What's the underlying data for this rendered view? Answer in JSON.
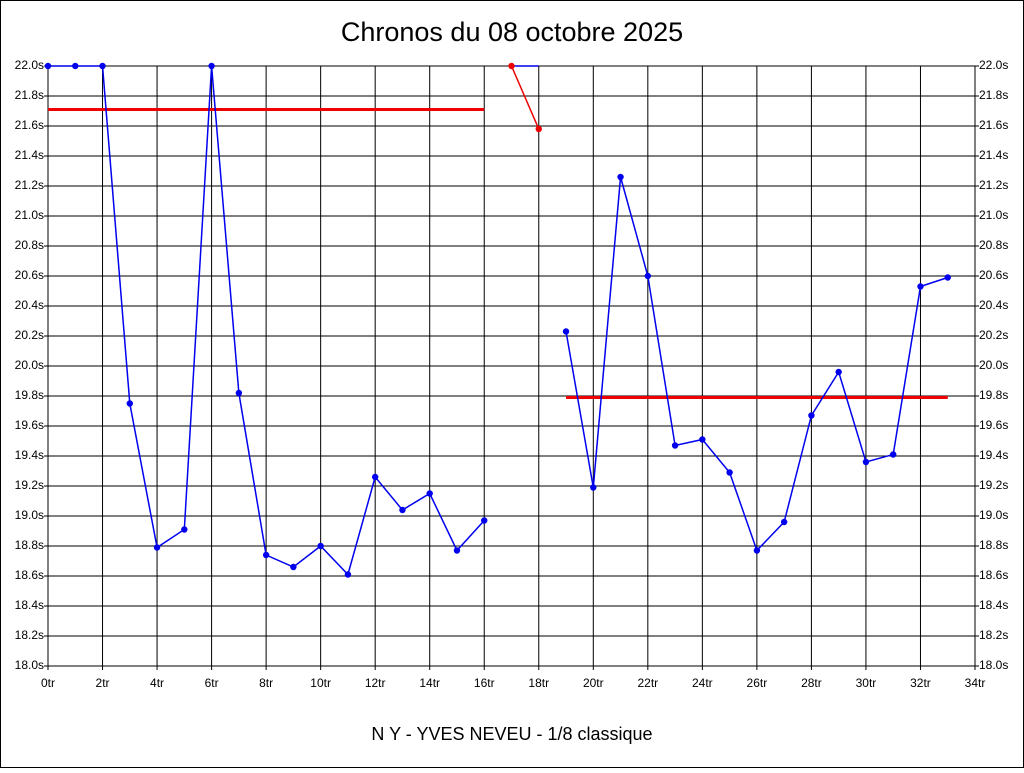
{
  "chart_data": {
    "type": "line",
    "title": "Chronos du 08 octobre 2025",
    "xlabel": "N Y - YVES NEVEU - 1/8 classique",
    "xlim": [
      0,
      34
    ],
    "ylim": [
      18.0,
      22.0
    ],
    "grid": true,
    "xticks": [
      {
        "value": 0,
        "label": "0tr"
      },
      {
        "value": 2,
        "label": "2tr"
      },
      {
        "value": 4,
        "label": "4tr"
      },
      {
        "value": 6,
        "label": "6tr"
      },
      {
        "value": 8,
        "label": "8tr"
      },
      {
        "value": 10,
        "label": "10tr"
      },
      {
        "value": 12,
        "label": "12tr"
      },
      {
        "value": 14,
        "label": "14tr"
      },
      {
        "value": 16,
        "label": "16tr"
      },
      {
        "value": 18,
        "label": "18tr"
      },
      {
        "value": 20,
        "label": "20tr"
      },
      {
        "value": 22,
        "label": "22tr"
      },
      {
        "value": 24,
        "label": "24tr"
      },
      {
        "value": 26,
        "label": "26tr"
      },
      {
        "value": 28,
        "label": "28tr"
      },
      {
        "value": 30,
        "label": "30tr"
      },
      {
        "value": 32,
        "label": "32tr"
      },
      {
        "value": 34,
        "label": "34tr"
      }
    ],
    "yticks": [
      {
        "value": 18.0,
        "label": "18.0s"
      },
      {
        "value": 18.2,
        "label": "18.2s"
      },
      {
        "value": 18.4,
        "label": "18.4s"
      },
      {
        "value": 18.6,
        "label": "18.6s"
      },
      {
        "value": 18.8,
        "label": "18.8s"
      },
      {
        "value": 19.0,
        "label": "19.0s"
      },
      {
        "value": 19.2,
        "label": "19.2s"
      },
      {
        "value": 19.4,
        "label": "19.4s"
      },
      {
        "value": 19.6,
        "label": "19.6s"
      },
      {
        "value": 19.8,
        "label": "19.8s"
      },
      {
        "value": 20.0,
        "label": "20.0s"
      },
      {
        "value": 20.2,
        "label": "20.2s"
      },
      {
        "value": 20.4,
        "label": "20.4s"
      },
      {
        "value": 20.6,
        "label": "20.6s"
      },
      {
        "value": 20.8,
        "label": "20.8s"
      },
      {
        "value": 21.0,
        "label": "21.0s"
      },
      {
        "value": 21.2,
        "label": "21.2s"
      },
      {
        "value": 21.4,
        "label": "21.4s"
      },
      {
        "value": 21.6,
        "label": "21.6s"
      },
      {
        "value": 21.8,
        "label": "21.8s"
      },
      {
        "value": 22.0,
        "label": "22.0s"
      }
    ],
    "series": [
      {
        "color": "#0000ee",
        "markers": true,
        "x": [
          0,
          1,
          2,
          3,
          4,
          5,
          6,
          7,
          8,
          9,
          10,
          11,
          12,
          13,
          14,
          15,
          16
        ],
        "values": [
          22.0,
          22.0,
          22.0,
          19.75,
          18.79,
          18.91,
          22.0,
          19.82,
          18.74,
          18.66,
          18.8,
          18.61,
          19.26,
          19.04,
          19.15,
          18.77,
          18.97
        ]
      },
      {
        "color": "#0000ee",
        "markers": false,
        "x": [
          17,
          18
        ],
        "values": [
          22.0,
          22.0
        ]
      },
      {
        "color": "#ee0000",
        "markers": true,
        "x": [
          17,
          18
        ],
        "values": [
          22.0,
          21.58
        ]
      },
      {
        "color": "#0000ee",
        "markers": true,
        "x": [
          19,
          20,
          21,
          22,
          23,
          24,
          25,
          26,
          27,
          28,
          29,
          30,
          31,
          32,
          33
        ],
        "values": [
          20.23,
          19.19,
          21.26,
          20.6,
          19.47,
          19.51,
          19.29,
          18.77,
          18.96,
          19.67,
          19.96,
          19.36,
          19.41,
          20.53,
          20.59
        ]
      }
    ],
    "reference_lines": [
      {
        "color": "#ee0000",
        "x": [
          0,
          16
        ],
        "value": 21.71
      },
      {
        "color": "#ee0000",
        "x": [
          19,
          33
        ],
        "value": 19.79
      }
    ]
  }
}
